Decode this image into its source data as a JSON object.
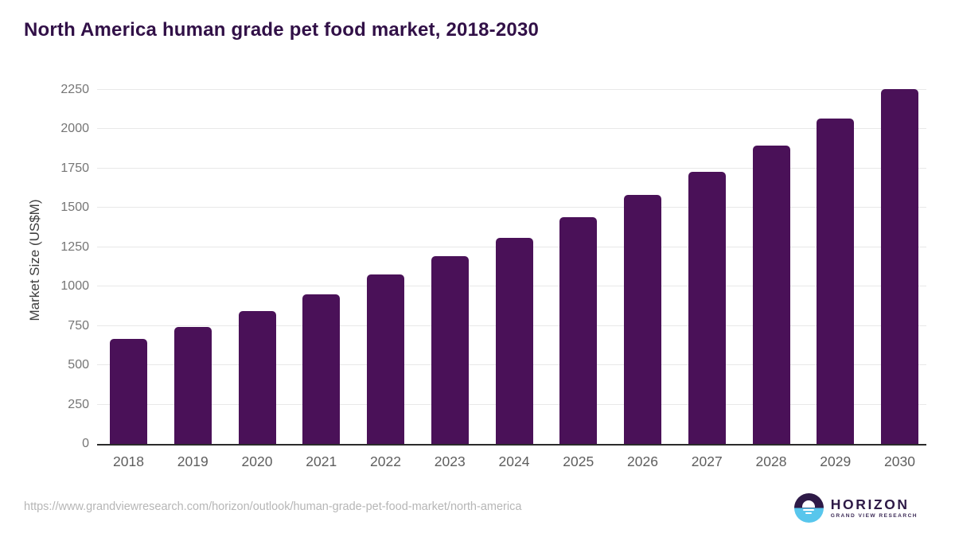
{
  "chart_data": {
    "type": "bar",
    "title": "North America human grade pet food market, 2018-2030",
    "categories": [
      "2018",
      "2019",
      "2020",
      "2021",
      "2022",
      "2023",
      "2024",
      "2025",
      "2026",
      "2027",
      "2028",
      "2029",
      "2030"
    ],
    "values": [
      665,
      745,
      845,
      950,
      1075,
      1195,
      1310,
      1440,
      1585,
      1730,
      1895,
      2070,
      2255
    ],
    "xlabel": "",
    "ylabel": "Market Size (US$M)",
    "ylim": [
      0,
      2250
    ],
    "ytick_interval": 250,
    "grid": "horizontal",
    "legend": "none",
    "bar_color": "#4a1158"
  },
  "footer": {
    "source_url": "https://www.grandviewresearch.com/horizon/outlook/human-grade-pet-food-market/north-america",
    "logo": {
      "brand": "HORIZON",
      "sub_brand": "GRAND VIEW RESEARCH"
    }
  },
  "colors": {
    "title_text": "#311047",
    "bar": "#4a1158",
    "y_axis_title": "#3d3d3d",
    "y_tick_label": "#757575",
    "x_tick_label": "#5e5e5e",
    "gridline": "#e8e8e8",
    "axis_line": "#2b2b2b",
    "url_text": "#b6b6b6",
    "logo_purple": "#2e1a47",
    "logo_cyan": "#58c6ec"
  }
}
